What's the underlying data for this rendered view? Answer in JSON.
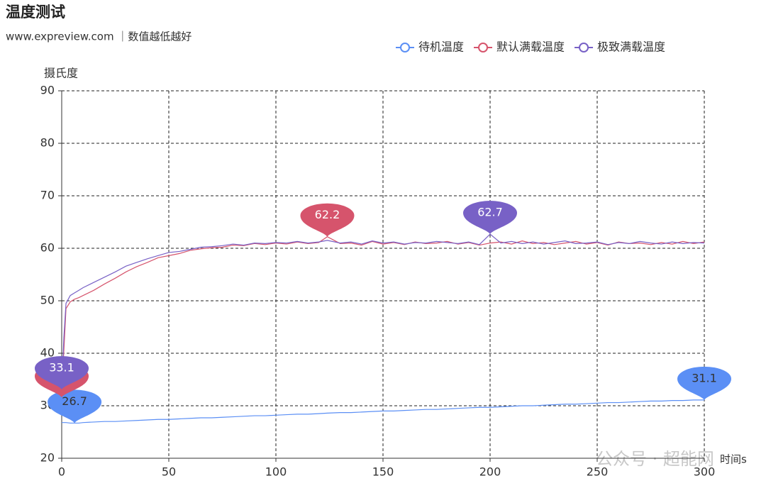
{
  "chart_data": {
    "type": "line",
    "title": "温度测试",
    "subtitle": "www.expreview.com ｜数值越低越好",
    "y_label": "摄氏度",
    "x_label": "时间s",
    "watermark": "公众号 · 超能网",
    "xlim": [
      0,
      300
    ],
    "xticks": [
      0,
      50,
      100,
      150,
      200,
      250,
      300
    ],
    "ylim": [
      20,
      90
    ],
    "yticks": [
      20,
      30,
      40,
      50,
      60,
      70,
      80,
      90
    ],
    "grid": true,
    "x": [
      0,
      1,
      2,
      4,
      6,
      8,
      10,
      15,
      20,
      25,
      30,
      35,
      40,
      45,
      50,
      55,
      60,
      65,
      70,
      75,
      80,
      85,
      90,
      95,
      100,
      105,
      110,
      115,
      120,
      124,
      130,
      135,
      140,
      145,
      150,
      155,
      160,
      165,
      170,
      175,
      180,
      185,
      190,
      195,
      200,
      205,
      210,
      215,
      220,
      225,
      230,
      235,
      240,
      245,
      250,
      255,
      260,
      265,
      270,
      275,
      280,
      285,
      290,
      295,
      300
    ],
    "series": [
      {
        "name": "待机温度",
        "color": "#5b8ff5",
        "values": [
          26.8,
          26.8,
          26.8,
          26.7,
          26.7,
          26.7,
          26.8,
          26.9,
          27.0,
          27.0,
          27.1,
          27.2,
          27.3,
          27.4,
          27.4,
          27.5,
          27.6,
          27.7,
          27.7,
          27.8,
          27.9,
          28.0,
          28.1,
          28.1,
          28.2,
          28.3,
          28.4,
          28.4,
          28.5,
          28.6,
          28.7,
          28.7,
          28.8,
          28.9,
          29.0,
          29.0,
          29.1,
          29.2,
          29.3,
          29.3,
          29.4,
          29.5,
          29.6,
          29.7,
          29.7,
          29.8,
          29.9,
          30.0,
          30.0,
          30.1,
          30.2,
          30.3,
          30.3,
          30.4,
          30.5,
          30.6,
          30.6,
          30.7,
          30.8,
          30.9,
          30.9,
          31.0,
          31.0,
          31.1,
          31.1
        ],
        "mark_points": [
          {
            "x": 6,
            "value": 26.7
          },
          {
            "x": 300,
            "value": 31.1
          }
        ]
      },
      {
        "name": "默认满载温度",
        "color": "#d6546c",
        "values": [
          31.6,
          40.5,
          48.5,
          49.8,
          50.3,
          50.6,
          51.0,
          52.0,
          53.2,
          54.3,
          55.5,
          56.5,
          57.3,
          58.2,
          58.6,
          59.0,
          59.6,
          59.9,
          60.1,
          60.2,
          60.6,
          60.5,
          60.9,
          60.7,
          61.0,
          60.8,
          61.2,
          60.9,
          61.1,
          62.2,
          60.9,
          61.0,
          60.6,
          61.3,
          60.8,
          61.1,
          60.7,
          61.2,
          60.9,
          61.0,
          61.3,
          60.8,
          61.1,
          60.6,
          61.0,
          61.2,
          60.8,
          61.4,
          60.9,
          61.1,
          60.7,
          61.0,
          61.3,
          60.8,
          61.1,
          60.6,
          61.2,
          60.9,
          61.0,
          60.7,
          61.1,
          60.8,
          61.3,
          60.9,
          61.2
        ],
        "mark_points": [
          {
            "x": 0,
            "value": 31.6
          },
          {
            "x": 124,
            "value": 62.2
          }
        ]
      },
      {
        "name": "极致满载温度",
        "color": "#7861c6",
        "values": [
          33.1,
          43.0,
          49.5,
          51.0,
          51.5,
          52.0,
          52.5,
          53.5,
          54.5,
          55.5,
          56.6,
          57.3,
          58.0,
          58.6,
          59.2,
          59.4,
          59.8,
          60.2,
          60.3,
          60.5,
          60.8,
          60.6,
          61.0,
          60.9,
          61.1,
          61.0,
          61.3,
          61.0,
          61.2,
          61.5,
          61.0,
          61.2,
          60.8,
          61.4,
          61.0,
          61.2,
          60.8,
          61.1,
          61.0,
          61.3,
          61.1,
          60.9,
          61.2,
          60.7,
          62.7,
          61.0,
          61.3,
          60.9,
          61.2,
          60.8,
          61.1,
          61.4,
          60.9,
          61.0,
          61.2,
          60.7,
          61.1,
          60.9,
          61.3,
          61.0,
          60.8,
          61.2,
          60.9,
          61.1,
          61.0
        ],
        "mark_points": [
          {
            "x": 0,
            "value": 33.1
          },
          {
            "x": 200,
            "value": 62.7
          }
        ]
      }
    ]
  }
}
